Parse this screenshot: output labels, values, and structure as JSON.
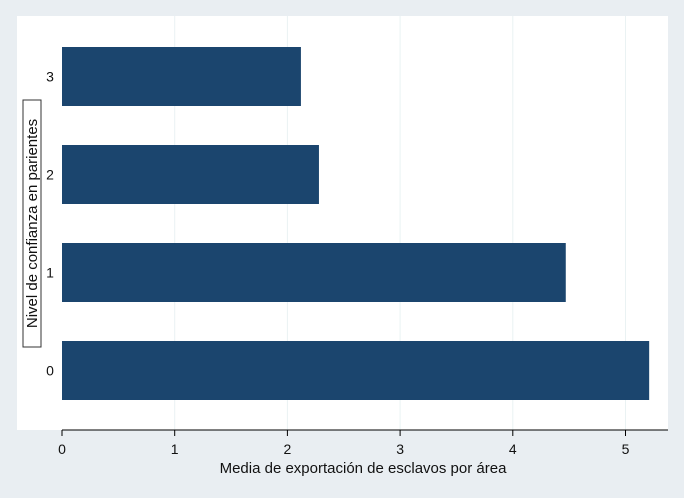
{
  "chart_data": {
    "type": "bar",
    "orientation": "horizontal",
    "categories": [
      "3",
      "2",
      "1",
      "0"
    ],
    "values": [
      2.12,
      2.28,
      4.47,
      5.21
    ],
    "xlabel": "Media de exportación de esclavos por área",
    "ylabel": "Nivel de confianza en parientes",
    "xlim": [
      0,
      5.35
    ],
    "xticks": [
      "0",
      "1",
      "2",
      "3",
      "4",
      "5"
    ],
    "grid": true,
    "colors": {
      "bar": "#1b456e",
      "plot_background": "#ffffff",
      "page_background": "#e9eef2",
      "grid": "#eaf2f3"
    }
  }
}
